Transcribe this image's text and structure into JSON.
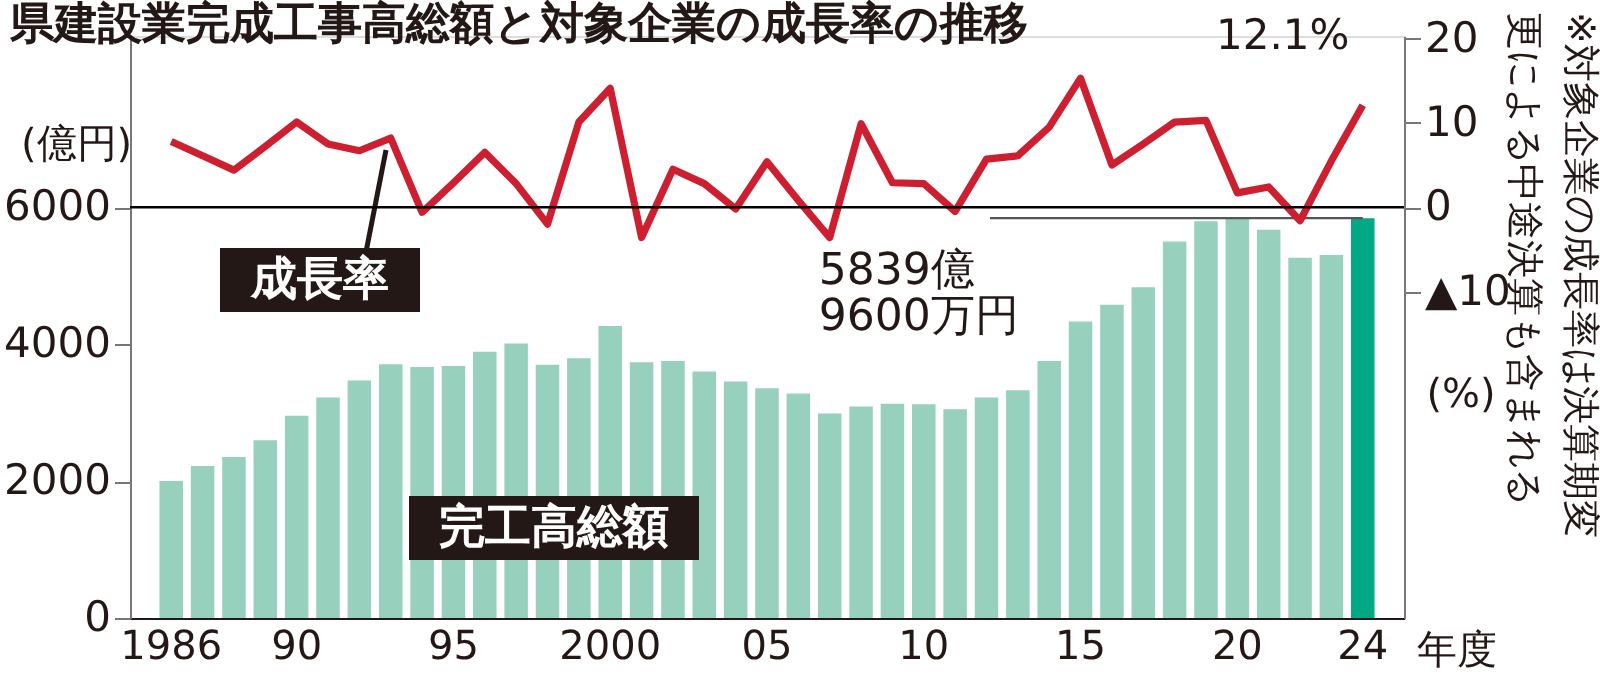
{
  "chart_data": {
    "type": "bar",
    "title": "県建設業完成工事高総額と対象企業の成長率の推移",
    "xlabel": "年度",
    "ylabel": "(億円)",
    "y2label": "(%)",
    "categories": [
      "1986",
      null,
      null,
      null,
      "90",
      null,
      null,
      null,
      null,
      "95",
      null,
      null,
      null,
      null,
      "2000",
      null,
      null,
      null,
      null,
      "05",
      null,
      null,
      null,
      null,
      "10",
      null,
      null,
      null,
      null,
      "15",
      null,
      null,
      null,
      null,
      "20",
      null,
      null,
      null,
      "24"
    ],
    "ylim": [
      0,
      8500
    ],
    "yticks": [
      0,
      2000,
      4000,
      6000
    ],
    "y2lim": [
      -48.7,
      20.3
    ],
    "y2ticks": [
      20,
      10,
      0,
      {
        "value": -10,
        "label": "▲10"
      }
    ],
    "series": [
      {
        "name": "完工高総額",
        "colors": [
          "#97d1bd",
          "#97d1bd",
          "#97d1bd",
          "#97d1bd",
          "#97d1bd",
          "#97d1bd",
          "#97d1bd",
          "#97d1bd",
          "#97d1bd",
          "#97d1bd",
          "#97d1bd",
          "#97d1bd",
          "#97d1bd",
          "#97d1bd",
          "#97d1bd",
          "#97d1bd",
          "#97d1bd",
          "#97d1bd",
          "#97d1bd",
          "#97d1bd",
          "#97d1bd",
          "#97d1bd",
          "#97d1bd",
          "#97d1bd",
          "#97d1bd",
          "#97d1bd",
          "#97d1bd",
          "#97d1bd",
          "#97d1bd",
          "#97d1bd",
          "#97d1bd",
          "#97d1bd",
          "#97d1bd",
          "#97d1bd",
          "#97d1bd",
          "#97d1bd",
          "#97d1bd",
          "#97d1bd",
          "#00a983"
        ],
        "values": [
          2000,
          2220,
          2350,
          2595,
          2955,
          3220,
          3470,
          3705,
          3665,
          3680,
          3890,
          4010,
          3700,
          3795,
          4265,
          3735,
          3755,
          3600,
          3455,
          3355,
          3280,
          2985,
          3090,
          3130,
          3120,
          3050,
          3220,
          3325,
          3755,
          4330,
          4575,
          4830,
          5500,
          5795,
          5855,
          5670,
          5260,
          5300,
          5839.96
        ]
      },
      {
        "name": "成長率",
        "type": "line",
        "axis": "y2",
        "color": "#cd1f30",
        "values": [
          7.8,
          6.1,
          4.4,
          7.2,
          10.1,
          7.5,
          6.7,
          8.2,
          -0.6,
          2.9,
          6.5,
          2.8,
          -2.0,
          10.1,
          14.1,
          -3.6,
          4.5,
          2.8,
          -0.2,
          5.4,
          0.8,
          -3.6,
          9.9,
          2.9,
          2.8,
          -0.5,
          5.7,
          6.1,
          9.5,
          15.3,
          5.0,
          7.5,
          10.1,
          10.3,
          1.7,
          2.4,
          -1.6,
          5.5,
          12.1
        ],
        "value_labels": [
          null,
          null,
          null,
          null,
          null,
          null,
          null,
          null,
          null,
          null,
          null,
          null,
          null,
          null,
          null,
          null,
          null,
          null,
          null,
          null,
          null,
          null,
          null,
          null,
          null,
          null,
          null,
          null,
          null,
          null,
          null,
          null,
          null,
          null,
          null,
          null,
          null,
          null,
          "12.1%"
        ]
      }
    ],
    "ref_lines": [
      {
        "axis": "y2",
        "value": 0,
        "color": "#000000"
      }
    ],
    "annotations": [
      {
        "text": "5839億\n9600万円",
        "x": "24",
        "y": 5839.96
      },
      "※対象企業の成長率は決算期変更による中途決算も含まれる"
    ],
    "grid": false,
    "marker": "none",
    "line_style": "solid"
  }
}
